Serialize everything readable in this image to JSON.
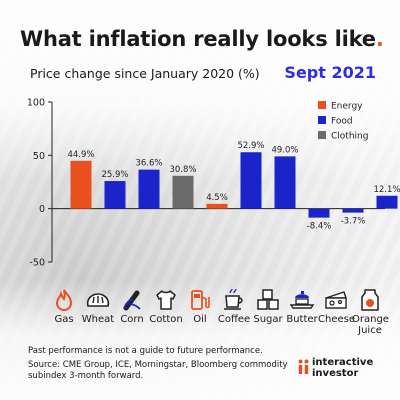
{
  "header": {
    "title": "What inflation really looks like",
    "title_dot": ".",
    "subtitle": "Price change since January 2020 (%)",
    "date": "Sept 2021"
  },
  "chart_data": {
    "type": "bar",
    "categories": [
      "Gas",
      "Wheat",
      "Corn",
      "Cotton",
      "Oil",
      "Coffee",
      "Sugar",
      "Butter",
      "Cheese",
      "Orange Juice"
    ],
    "values": [
      44.9,
      25.9,
      36.6,
      30.8,
      4.5,
      52.9,
      49.0,
      -8.4,
      -3.7,
      12.1
    ],
    "data_labels": [
      "44.9%",
      "25.9%",
      "36.6%",
      "30.8%",
      "4.5%",
      "52.9%",
      "49.0%",
      "-8.4%",
      "-3.7%",
      "12.1%"
    ],
    "groups": [
      "Energy",
      "Food",
      "Food",
      "Clothing",
      "Energy",
      "Food",
      "Food",
      "Food",
      "Food",
      "Food"
    ],
    "legend": [
      {
        "name": "Energy",
        "color": "#e8511e"
      },
      {
        "name": "Food",
        "color": "#1a24c8"
      },
      {
        "name": "Clothing",
        "color": "#6b6b6b"
      }
    ],
    "legend_position": "top-right",
    "ylim": [
      -50,
      100
    ],
    "yticks": [
      100,
      50,
      0,
      -50
    ],
    "ytick_labels": [
      "100",
      "50",
      "0",
      "-50"
    ],
    "xlabel": "",
    "ylabel": ""
  },
  "icons": [
    {
      "icon": "flame-icon",
      "label": "Gas"
    },
    {
      "icon": "bread-icon",
      "label": "Wheat"
    },
    {
      "icon": "corn-icon",
      "label": "Corn"
    },
    {
      "icon": "tshirt-icon",
      "label": "Cotton"
    },
    {
      "icon": "fuel-pump-icon",
      "label": "Oil"
    },
    {
      "icon": "coffee-cup-icon",
      "label": "Coffee"
    },
    {
      "icon": "sugar-cubes-icon",
      "label": "Sugar"
    },
    {
      "icon": "butter-dish-icon",
      "label": "Butter"
    },
    {
      "icon": "cheese-icon",
      "label": "Cheese"
    },
    {
      "icon": "juice-carton-icon",
      "label": "Orange Juice"
    }
  ],
  "footer": {
    "disclaimer": "Past performance is not a guide to future performance.",
    "source": "Source: CME Group, ICE, Morningstar, Bloomberg commodity subindex 3-month forward.",
    "brand_line1": "interactive",
    "brand_line2": "investor",
    "brand_color": "#e8511e"
  }
}
